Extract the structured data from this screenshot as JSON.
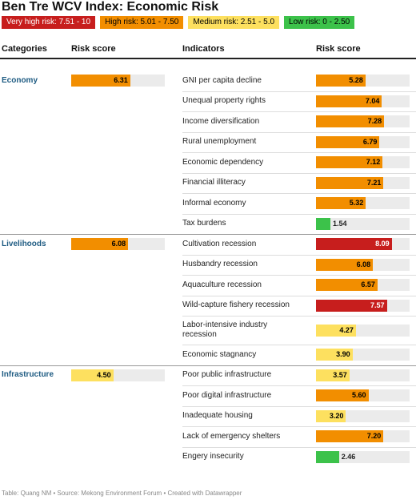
{
  "header": {
    "title": "Ben Tre WCV Index: Economic Risk"
  },
  "legend": [
    {
      "label": "Very high risk: 7.51 - 10",
      "min": 7.51,
      "max": 10,
      "color": "#c71e1d",
      "text_color": "#ffffff"
    },
    {
      "label": "High risk: 5.01 - 7.50",
      "min": 5.01,
      "max": 7.5,
      "color": "#f28e00",
      "text_color": "#000000"
    },
    {
      "label": "Medium risk: 2.51 - 5.0",
      "min": 2.51,
      "max": 5,
      "color": "#fde05f",
      "text_color": "#000000"
    },
    {
      "label": "Low risk: 0 - 2.50",
      "min": 0,
      "max": 2.5,
      "color": "#3cc24a",
      "text_color": "#000000"
    }
  ],
  "table": {
    "columns": [
      "Categories",
      "Risk score",
      "Indicators",
      "Risk score"
    ],
    "groups": [
      {
        "category": "Economy",
        "score": 6.31,
        "indicators": [
          {
            "name": "GNI per capita decline",
            "score": 5.28
          },
          {
            "name": "Unequal property rights",
            "score": 7.04
          },
          {
            "name": "Income diversification",
            "score": 7.28
          },
          {
            "name": "Rural unemployment",
            "score": 6.79
          },
          {
            "name": "Economic dependency",
            "score": 7.12
          },
          {
            "name": "Financial illiteracy",
            "score": 7.21
          },
          {
            "name": "Informal economy",
            "score": 5.32
          },
          {
            "name": "Tax burdens",
            "score": 1.54
          }
        ]
      },
      {
        "category": "Livelihoods",
        "score": 6.08,
        "indicators": [
          {
            "name": "Cultivation recession",
            "score": 8.09
          },
          {
            "name": "Husbandry recession",
            "score": 6.08
          },
          {
            "name": "Aquaculture recession",
            "score": 6.57
          },
          {
            "name": "Wild-capture fishery recession",
            "score": 7.57
          },
          {
            "name": "Labor-intensive industry recession",
            "score": 4.27
          },
          {
            "name": "Economic stagnancy",
            "score": 3.9,
            "score_label": "3.90"
          }
        ]
      },
      {
        "category": "Infrastructure",
        "score": 4.5,
        "score_label": "4.50",
        "indicators": [
          {
            "name": "Poor public infrastructure",
            "score": 3.57
          },
          {
            "name": "Poor digital infrastructure",
            "score": 5.6,
            "score_label": "5.60"
          },
          {
            "name": "Inadequate housing",
            "score": 3.2,
            "score_label": "3.20"
          },
          {
            "name": "Lack of emergency shelters",
            "score": 7.2,
            "score_label": "7.20"
          },
          {
            "name": "Engery insecurity",
            "score": 2.46
          }
        ]
      }
    ]
  },
  "footer": "Table: Quang NM • Source: Mekong Environment Forum • Created with Datawrapper"
}
